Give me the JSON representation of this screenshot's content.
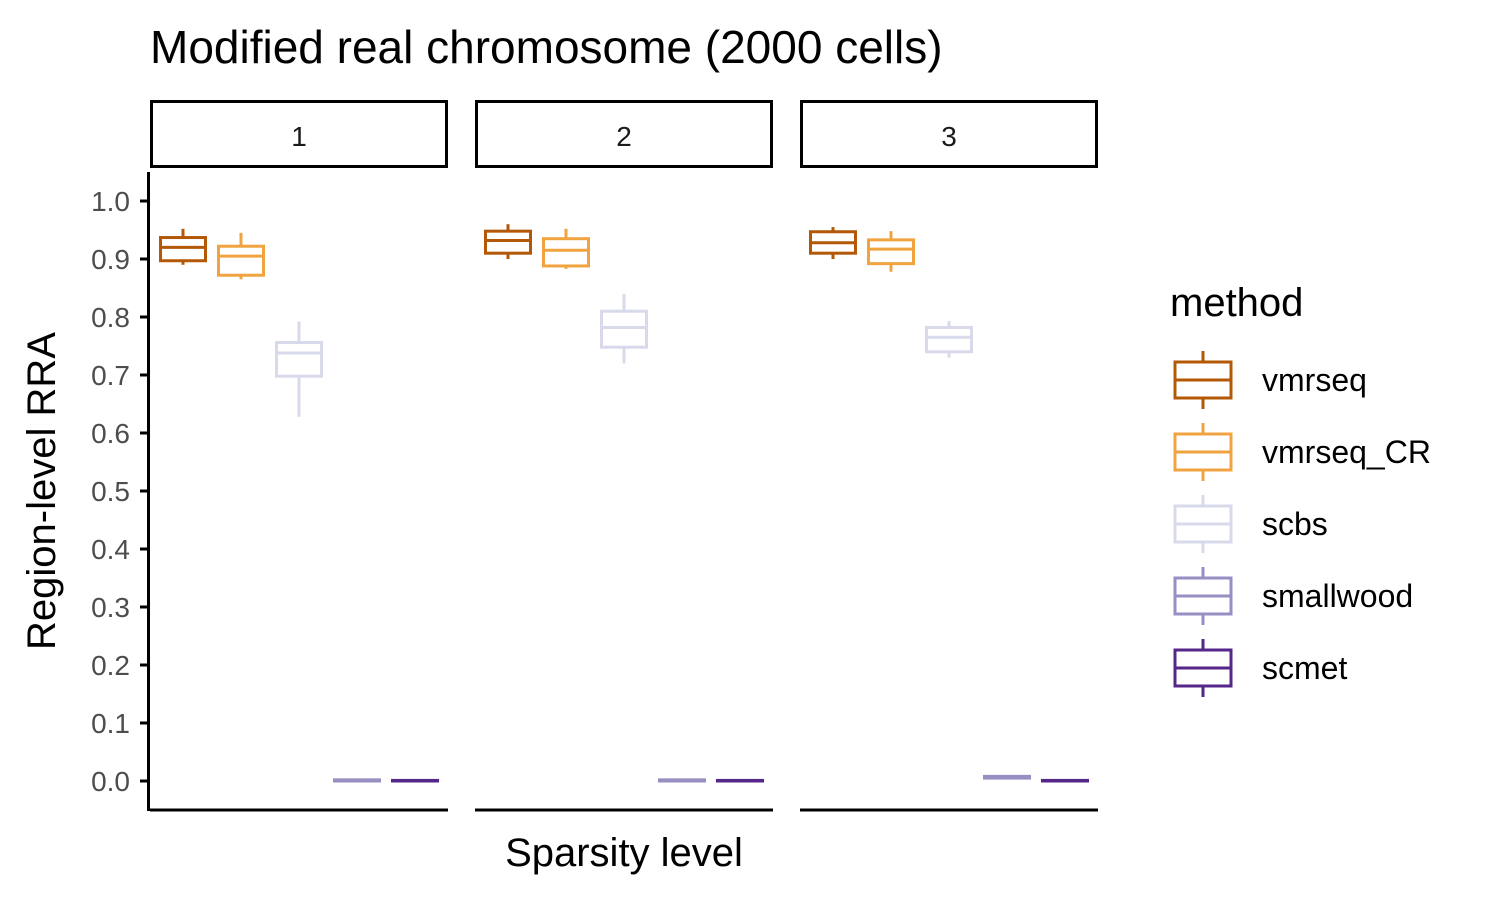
{
  "chart_data": {
    "type": "boxplot",
    "title": "Modified real chromosome (2000 cells)",
    "xlabel": "Sparsity level",
    "ylabel": "Region-level RRA",
    "ylim": [
      0.0,
      1.0
    ],
    "yticks": [
      "0.0",
      "0.1",
      "0.2",
      "0.3",
      "0.4",
      "0.5",
      "0.6",
      "0.7",
      "0.8",
      "0.9",
      "1.0"
    ],
    "grid": false,
    "legend": {
      "title": "method",
      "position": "right",
      "entries": [
        {
          "name": "vmrseq",
          "color": "#b35806"
        },
        {
          "name": "vmrseq_CR",
          "color": "#f1a340"
        },
        {
          "name": "scbs",
          "color": "#d8daeb"
        },
        {
          "name": "smallwood",
          "color": "#998ec3"
        },
        {
          "name": "scmet",
          "color": "#542788"
        }
      ]
    },
    "facets": [
      {
        "label": "1",
        "boxes": [
          {
            "method": "vmrseq",
            "min": 0.89,
            "q1": 0.897,
            "median": 0.92,
            "q3": 0.937,
            "max": 0.952
          },
          {
            "method": "vmrseq_CR",
            "min": 0.865,
            "q1": 0.872,
            "median": 0.905,
            "q3": 0.922,
            "max": 0.945
          },
          {
            "method": "scbs",
            "min": 0.628,
            "q1": 0.698,
            "median": 0.738,
            "q3": 0.756,
            "max": 0.792
          },
          {
            "method": "smallwood",
            "min": 0.0,
            "q1": 0.0,
            "median": 0.001,
            "q3": 0.002,
            "max": 0.003
          },
          {
            "method": "scmet",
            "min": 0.0,
            "q1": 0.0,
            "median": 0.0,
            "q3": 0.001,
            "max": 0.002
          }
        ]
      },
      {
        "label": "2",
        "boxes": [
          {
            "method": "vmrseq",
            "min": 0.9,
            "q1": 0.91,
            "median": 0.932,
            "q3": 0.948,
            "max": 0.96
          },
          {
            "method": "vmrseq_CR",
            "min": 0.883,
            "q1": 0.888,
            "median": 0.915,
            "q3": 0.935,
            "max": 0.952
          },
          {
            "method": "scbs",
            "min": 0.72,
            "q1": 0.748,
            "median": 0.782,
            "q3": 0.81,
            "max": 0.84
          },
          {
            "method": "smallwood",
            "min": 0.0,
            "q1": 0.0,
            "median": 0.001,
            "q3": 0.002,
            "max": 0.003
          },
          {
            "method": "scmet",
            "min": 0.0,
            "q1": 0.0,
            "median": 0.0,
            "q3": 0.001,
            "max": 0.002
          }
        ]
      },
      {
        "label": "3",
        "boxes": [
          {
            "method": "vmrseq",
            "min": 0.9,
            "q1": 0.91,
            "median": 0.928,
            "q3": 0.947,
            "max": 0.955
          },
          {
            "method": "vmrseq_CR",
            "min": 0.878,
            "q1": 0.892,
            "median": 0.917,
            "q3": 0.933,
            "max": 0.948
          },
          {
            "method": "scbs",
            "min": 0.73,
            "q1": 0.74,
            "median": 0.765,
            "q3": 0.782,
            "max": 0.793
          },
          {
            "method": "smallwood",
            "min": 0.004,
            "q1": 0.005,
            "median": 0.006,
            "q3": 0.008,
            "max": 0.009
          },
          {
            "method": "scmet",
            "min": 0.0,
            "q1": 0.0,
            "median": 0.0,
            "q3": 0.001,
            "max": 0.002
          }
        ]
      }
    ]
  }
}
